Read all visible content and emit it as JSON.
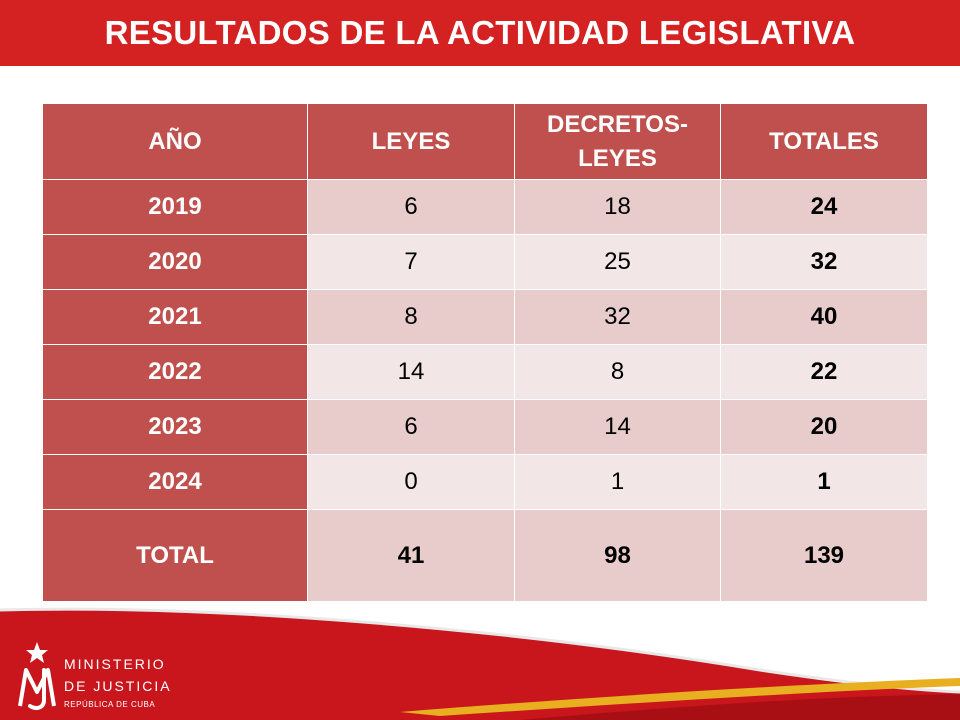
{
  "header": {
    "title": "RESULTADOS DE LA ACTIVIDAD LEGISLATIVA"
  },
  "table": {
    "columns": [
      "AÑO",
      "LEYES",
      "DECRETOS-LEYES",
      "TOTALES"
    ],
    "rows": [
      {
        "year": "2019",
        "leyes": "6",
        "decretos": "18",
        "totales": "24"
      },
      {
        "year": "2020",
        "leyes": "7",
        "decretos": "25",
        "totales": "32"
      },
      {
        "year": "2021",
        "leyes": "8",
        "decretos": "32",
        "totales": "40"
      },
      {
        "year": "2022",
        "leyes": "14",
        "decretos": "8",
        "totales": "22"
      },
      {
        "year": "2023",
        "leyes": "6",
        "decretos": "14",
        "totales": "20"
      },
      {
        "year": "2024",
        "leyes": "0",
        "decretos": "1",
        "totales": "1"
      }
    ],
    "total": {
      "label": "TOTAL",
      "leyes": "41",
      "decretos": "98",
      "totales": "139"
    }
  },
  "footer": {
    "logo_line1": "MINISTERIO",
    "logo_line2": "DE JUSTICIA",
    "logo_line3": "REPÚBLICA DE CUBA"
  },
  "colors": {
    "header": "#d42222",
    "header_cell": "#c0504d",
    "row_odd": "#e8cccc",
    "row_even": "#f3e6e6",
    "footer_red": "#c8161c",
    "footer_gold": "#e8b020"
  }
}
